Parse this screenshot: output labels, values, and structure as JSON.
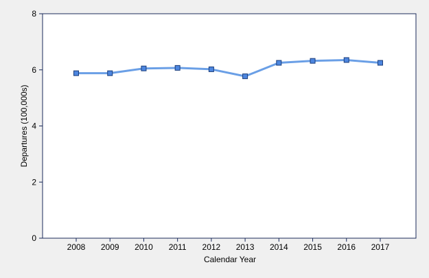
{
  "chart_data": {
    "type": "line",
    "title": "",
    "xlabel": "Calendar Year",
    "ylabel": "Departures (100,000s)",
    "categories": [
      "2008",
      "2009",
      "2010",
      "2011",
      "2012",
      "2013",
      "2014",
      "2015",
      "2016",
      "2017"
    ],
    "series": [
      {
        "values": [
          5.88,
          5.88,
          6.05,
          6.07,
          6.02,
          5.77,
          6.25,
          6.32,
          6.35,
          6.25
        ]
      }
    ],
    "ylim": [
      0,
      8
    ],
    "yticks": [
      "0",
      "2",
      "4",
      "6",
      "8"
    ],
    "grid": false,
    "legend": "none",
    "colors": {
      "line": "#6a9fe6",
      "marker_fill": "#4d86df",
      "marker_stroke": "#1a3d7a",
      "axis": "#1a2a5a",
      "plot_background": "#ffffff",
      "background": "#f0f0f0"
    }
  }
}
